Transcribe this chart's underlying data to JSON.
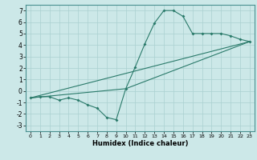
{
  "xlabel": "Humidex (Indice chaleur)",
  "bg_color": "#cce8e8",
  "line_color": "#2a7a6a",
  "grid_color": "#aad0d0",
  "xlim": [
    -0.5,
    23.5
  ],
  "ylim": [
    -3.5,
    7.5
  ],
  "xticks": [
    0,
    1,
    2,
    3,
    4,
    5,
    6,
    7,
    8,
    9,
    10,
    11,
    12,
    13,
    14,
    15,
    16,
    17,
    18,
    19,
    20,
    21,
    22,
    23
  ],
  "yticks": [
    -3,
    -2,
    -1,
    0,
    1,
    2,
    3,
    4,
    5,
    6,
    7
  ],
  "line1_x": [
    0,
    1,
    2,
    3,
    4,
    5,
    6,
    7,
    8,
    9,
    10,
    11,
    12,
    13,
    14,
    15,
    16,
    17,
    18,
    19,
    20,
    21,
    22,
    23
  ],
  "line1_y": [
    -0.6,
    -0.5,
    -0.5,
    -0.8,
    -0.6,
    -0.8,
    -1.2,
    -1.5,
    -2.3,
    -2.5,
    0.2,
    2.1,
    4.1,
    5.9,
    7.0,
    7.0,
    6.5,
    5.0,
    5.0,
    5.0,
    5.0,
    4.8,
    4.5,
    4.3
  ],
  "line2_x": [
    0,
    23
  ],
  "line2_y": [
    -0.6,
    4.3
  ],
  "line3_x": [
    0,
    10,
    23
  ],
  "line3_y": [
    -0.6,
    0.2,
    4.3
  ],
  "xlabel_fontsize": 6,
  "tick_fontsize_x": 4.5,
  "tick_fontsize_y": 5.5
}
